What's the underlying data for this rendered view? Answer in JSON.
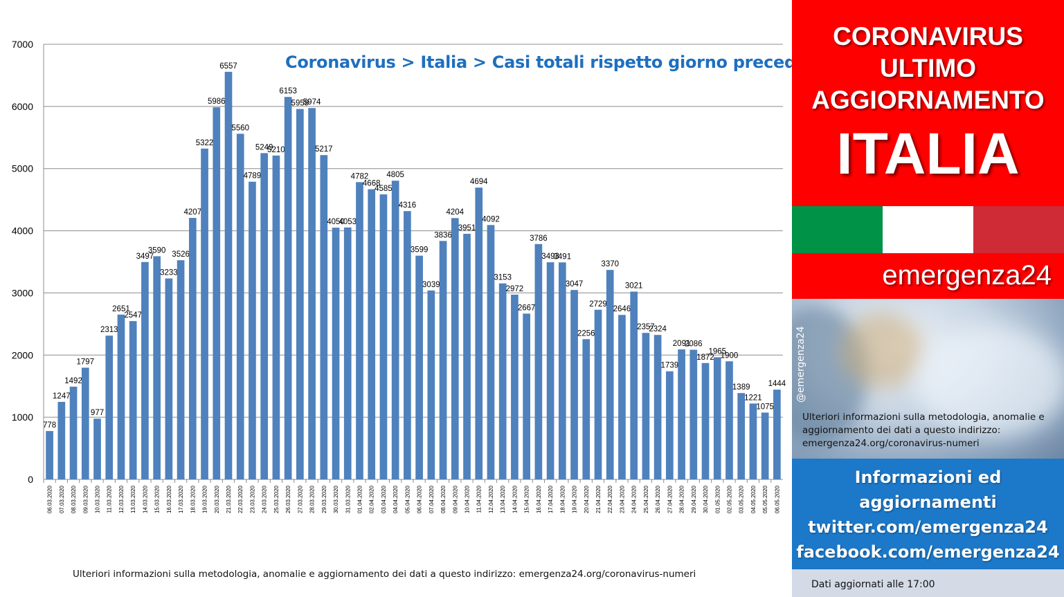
{
  "chart_data": {
    "type": "bar",
    "title": "Coronavirus > Italia > Casi totali rispetto giorno precedente",
    "xlabel": "",
    "ylabel": "",
    "ylim": [
      0,
      7000
    ],
    "y_ticks": [
      "0",
      "1000",
      "2000",
      "3000",
      "4000",
      "5000",
      "6000",
      "7000"
    ],
    "grid": true,
    "bar_color": "#4f81bd",
    "categories": [
      "06.03.2020",
      "07.03.2020",
      "08.03.2020",
      "09.03.2020",
      "10.03.2020",
      "11.03.2020",
      "12.03.2020",
      "13.03.2020",
      "14.03.2020",
      "15.03.2020",
      "16.03.2020",
      "17.03.2020",
      "18.03.2020",
      "19.03.2020",
      "20.03.2020",
      "21.03.2020",
      "22.03.2020",
      "23.03.2020",
      "24.03.2020",
      "25.03.2020",
      "26.03.2020",
      "27.03.2020",
      "28.03.2020",
      "29.03.2020",
      "30.03.2020",
      "31.03.2020",
      "01.04.2020",
      "02.04.2020",
      "03.04.2020",
      "04.04.2020",
      "05.04.2020",
      "06.04.2020",
      "07.04.2020",
      "08.04.2020",
      "09.04.2020",
      "10.04.2020",
      "11.04.2020",
      "12.04.2020",
      "13.04.2020",
      "14.04.2020",
      "15.04.2020",
      "16.04.2020",
      "17.04.2020",
      "18.04.2020",
      "19.04.2020",
      "20.04.2020",
      "21.04.2020",
      "22.04.2020",
      "23.04.2020",
      "24.04.2020",
      "25.04.2020",
      "26.04.2020",
      "27.04.2020",
      "28.04.2020",
      "29.04.2020",
      "30.04.2020",
      "01.05.2020",
      "02.05.2020",
      "03.05.2020",
      "04.05.2020",
      "05.05.2020",
      "06.05.2020"
    ],
    "values": [
      778,
      1247,
      1492,
      1797,
      977,
      2313,
      2651,
      2547,
      3497,
      3590,
      3233,
      3526,
      4207,
      5322,
      5986,
      6557,
      5560,
      4789,
      5249,
      5210,
      6153,
      5959,
      5974,
      5217,
      4050,
      4053,
      4782,
      4668,
      4585,
      4805,
      4316,
      3599,
      3039,
      3836,
      4204,
      3951,
      4694,
      4092,
      3153,
      2972,
      2667,
      3786,
      3493,
      3491,
      3047,
      2256,
      2729,
      3370,
      2646,
      3021,
      2357,
      2324,
      1739,
      2091,
      2086,
      1872,
      1965,
      1900,
      1389,
      1221,
      1075,
      1444
    ]
  },
  "footer_note": "Ulteriori informazioni sulla metodologia, anomalie e aggiornamento dei dati a questo indirizzo: emergenza24.org/coronavirus-numeri",
  "side": {
    "headline_line1": "CORONAVIRUS",
    "headline_line2": "ULTIMO",
    "headline_line3": "AGGIORNAMENTO",
    "headline_country": "ITALIA",
    "flag_colors": [
      "#009246",
      "#ffffff",
      "#ce2b37"
    ],
    "brand": "emergenza24",
    "handle": "@emergenza24",
    "photo_note": "Ulteriori informazioni sulla metodologia, anomalie e aggiornamento dei dati a questo indirizzo: emergenza24.org/coronavirus-numeri",
    "info_line1": "Informazioni ed",
    "info_line2": "aggiornamenti",
    "info_line3": "twitter.com/emergenza24",
    "info_line4": "facebook.com/emergenza24",
    "updated": "Dati aggiornati alle 17:00"
  },
  "colors": {
    "accent_red": "#ff0000",
    "accent_blue": "#1c78c8",
    "title_blue": "#1e6fbf"
  }
}
